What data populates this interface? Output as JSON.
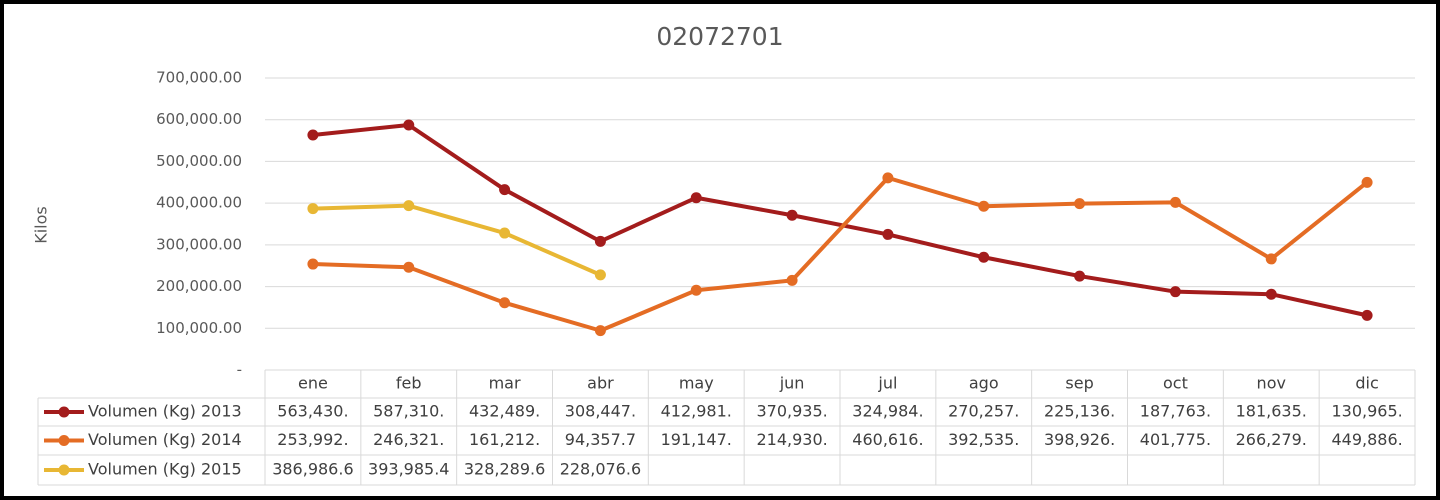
{
  "chart_data": {
    "type": "line",
    "title": "02072701",
    "y_label": "Kilos",
    "categories": [
      "ene",
      "feb",
      "mar",
      "abr",
      "may",
      "jun",
      "jul",
      "ago",
      "sep",
      "oct",
      "nov",
      "dic"
    ],
    "ylim": [
      0,
      700000
    ],
    "yticks": [
      {
        "value": 0,
        "label": "-"
      },
      {
        "value": 100000,
        "label": "100,000.00"
      },
      {
        "value": 200000,
        "label": "200,000.00"
      },
      {
        "value": 300000,
        "label": "300,000.00"
      },
      {
        "value": 400000,
        "label": "400,000.00"
      },
      {
        "value": 500000,
        "label": "500,000.00"
      },
      {
        "value": 600000,
        "label": "600,000.00"
      },
      {
        "value": 700000,
        "label": "700,000.00"
      }
    ],
    "grid": true,
    "series": [
      {
        "name": "Volumen (Kg) 2013",
        "color": "#a31c1c",
        "values": [
          563430,
          587310,
          432489,
          308447,
          412981,
          370935,
          324984,
          270257,
          225136,
          187763,
          181635,
          130965
        ],
        "value_labels": [
          "563,430.",
          "587,310.",
          "432,489.",
          "308,447.",
          "412,981.",
          "370,935.",
          "324,984.",
          "270,257.",
          "225,136.",
          "187,763.",
          "181,635.",
          "130,965."
        ]
      },
      {
        "name": "Volumen (Kg) 2014",
        "color": "#e46c24",
        "values": [
          253992,
          246321,
          161212,
          94357.7,
          191147,
          214930,
          460616,
          392535,
          398926,
          401775,
          266279,
          449886
        ],
        "value_labels": [
          "253,992.",
          "246,321.",
          "161,212.",
          "94,357.7",
          "191,147.",
          "214,930.",
          "460,616.",
          "392,535.",
          "398,926.",
          "401,775.",
          "266,279.",
          "449,886."
        ]
      },
      {
        "name": "Volumen (Kg) 2015",
        "color": "#e8b734",
        "values": [
          386986.6,
          393985.4,
          328289.6,
          228076.6,
          null,
          null,
          null,
          null,
          null,
          null,
          null,
          null
        ],
        "value_labels": [
          "386,986.6",
          "393,985.4",
          "328,289.6",
          "228,076.6",
          null,
          null,
          null,
          null,
          null,
          null,
          null,
          null
        ]
      }
    ]
  }
}
